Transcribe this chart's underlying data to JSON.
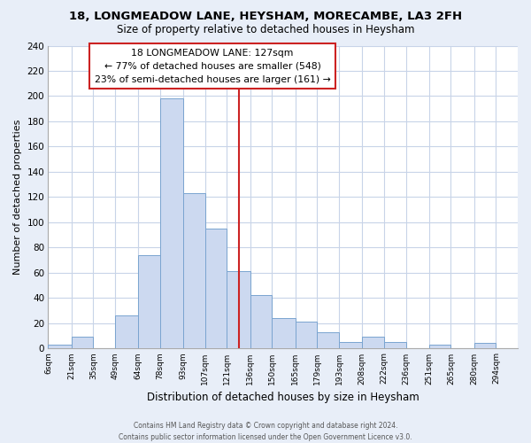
{
  "title": "18, LONGMEADOW LANE, HEYSHAM, MORECAMBE, LA3 2FH",
  "subtitle": "Size of property relative to detached houses in Heysham",
  "xlabel": "Distribution of detached houses by size in Heysham",
  "ylabel": "Number of detached properties",
  "bar_labels": [
    "6sqm",
    "21sqm",
    "35sqm",
    "49sqm",
    "64sqm",
    "78sqm",
    "93sqm",
    "107sqm",
    "121sqm",
    "136sqm",
    "150sqm",
    "165sqm",
    "179sqm",
    "193sqm",
    "208sqm",
    "222sqm",
    "236sqm",
    "251sqm",
    "265sqm",
    "280sqm",
    "294sqm"
  ],
  "bar_values": [
    3,
    9,
    0,
    26,
    74,
    198,
    123,
    95,
    61,
    42,
    24,
    21,
    13,
    5,
    9,
    5,
    0,
    3,
    0,
    4,
    0
  ],
  "bar_color": "#ccd9f0",
  "bar_edge_color": "#7aa4d0",
  "ylim": [
    0,
    240
  ],
  "yticks": [
    0,
    20,
    40,
    60,
    80,
    100,
    120,
    140,
    160,
    180,
    200,
    220,
    240
  ],
  "property_label": "18 LONGMEADOW LANE: 127sqm",
  "annotation_line1": "← 77% of detached houses are smaller (548)",
  "annotation_line2": "23% of semi-detached houses are larger (161) →",
  "vline_color": "#cc2222",
  "annotation_box_edge": "#cc2222",
  "annotation_box_face": "#ffffff",
  "footer_line1": "Contains HM Land Registry data © Crown copyright and database right 2024.",
  "footer_line2": "Contains public sector information licensed under the Open Government Licence v3.0.",
  "fig_bg_color": "#e8eef8",
  "plot_bg_color": "#ffffff",
  "grid_color": "#c8d4e8",
  "bin_edges": [
    6,
    21,
    35,
    49,
    64,
    78,
    93,
    107,
    121,
    136,
    150,
    165,
    179,
    193,
    208,
    222,
    236,
    251,
    265,
    280,
    294,
    308
  ],
  "vline_x": 128.5
}
